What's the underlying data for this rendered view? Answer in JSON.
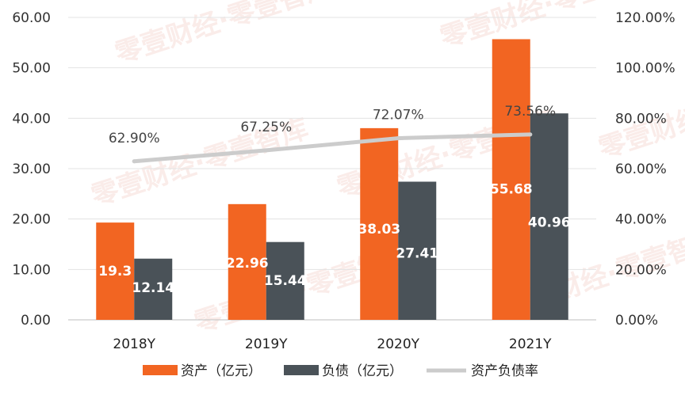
{
  "chart_data": {
    "type": "bar",
    "categories": [
      "2018Y",
      "2019Y",
      "2020Y",
      "2021Y"
    ],
    "series": [
      {
        "name": "资产（亿元）",
        "type": "bar",
        "axis": "left",
        "color": "#f26522",
        "values": [
          19.3,
          22.96,
          38.03,
          55.68
        ],
        "labels": [
          "19.3",
          "22.96",
          "38.03",
          "55.68"
        ]
      },
      {
        "name": "负债（亿元）",
        "type": "bar",
        "axis": "left",
        "color": "#4a5258",
        "values": [
          12.14,
          15.44,
          27.41,
          40.96
        ],
        "labels": [
          "12.14",
          "15.44",
          "27.41",
          "40.96"
        ]
      },
      {
        "name": "资产负债率",
        "type": "line",
        "axis": "right",
        "color": "#cccccc",
        "values": [
          62.9,
          67.25,
          72.07,
          73.56
        ],
        "labels": [
          "62.90%",
          "67.25%",
          "72.07%",
          "73.56%"
        ]
      }
    ],
    "left_axis": {
      "min": 0,
      "max": 60,
      "ticks": [
        "0.00",
        "10.00",
        "20.00",
        "30.00",
        "40.00",
        "50.00",
        "60.00"
      ]
    },
    "right_axis": {
      "min": 0,
      "max": 120,
      "ticks": [
        "0.00%",
        "20.00%",
        "40.00%",
        "60.00%",
        "80.00%",
        "100.00%",
        "120.00%"
      ]
    },
    "grid": true,
    "legend_position": "bottom"
  },
  "watermark": {
    "text": "零壹财经·零壹智库"
  }
}
